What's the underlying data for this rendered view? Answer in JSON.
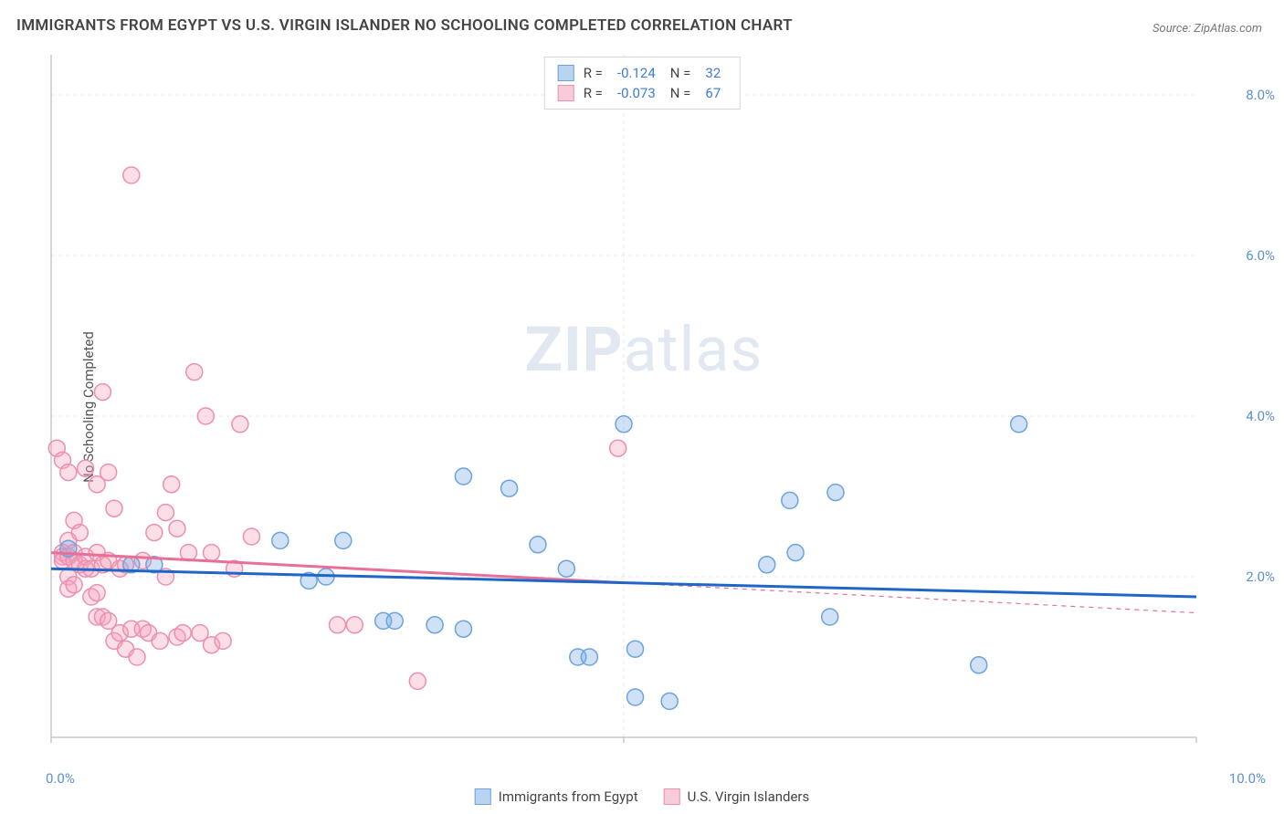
{
  "title": "IMMIGRANTS FROM EGYPT VS U.S. VIRGIN ISLANDER NO SCHOOLING COMPLETED CORRELATION CHART",
  "source": "Source: ZipAtlas.com",
  "y_axis_label": "No Schooling Completed",
  "watermark": {
    "bold": "ZIP",
    "light": "atlas"
  },
  "chart": {
    "type": "scatter-with-trend",
    "xlim": [
      0,
      10
    ],
    "ylim": [
      0,
      8.5
    ],
    "x_ticks": [
      0,
      5,
      10
    ],
    "x_tick_labels": [
      "0.0%",
      "5.0%",
      "10.0%"
    ],
    "y_ticks": [
      2,
      4,
      6,
      8
    ],
    "y_tick_labels": [
      "2.0%",
      "4.0%",
      "6.0%",
      "8.0%"
    ],
    "grid_color": "#e7e7e7",
    "grid_dash": "4 4",
    "axis_color": "#c9c9c9",
    "background_color": "#ffffff",
    "marker_radius": 9,
    "marker_stroke_width": 1.5,
    "trend_line_width": 3
  },
  "series": {
    "blue": {
      "label": "Immigrants from Egypt",
      "fill": "rgba(120,170,230,0.35)",
      "stroke": "#6aa3e0",
      "swatch_fill": "#b8d4f0",
      "swatch_border": "#6aa3e0",
      "R_label": "R =",
      "R_value": "-0.124",
      "N_label": "N =",
      "N_value": "32",
      "trend": {
        "x1": 0,
        "y1": 2.1,
        "x2": 10,
        "y2": 1.75,
        "color": "#1f66c7",
        "dash_after_x": null
      },
      "points": [
        [
          0.15,
          2.35
        ],
        [
          0.7,
          2.15
        ],
        [
          0.9,
          2.15
        ],
        [
          2.0,
          2.45
        ],
        [
          2.4,
          2.0
        ],
        [
          2.55,
          2.45
        ],
        [
          2.9,
          1.45
        ],
        [
          3.0,
          1.45
        ],
        [
          3.35,
          1.4
        ],
        [
          3.6,
          1.35
        ],
        [
          3.6,
          3.25
        ],
        [
          4.0,
          3.1
        ],
        [
          4.25,
          2.4
        ],
        [
          4.5,
          2.1
        ],
        [
          4.6,
          1.0
        ],
        [
          4.7,
          1.0
        ],
        [
          5.0,
          3.9
        ],
        [
          5.1,
          0.5
        ],
        [
          5.1,
          1.1
        ],
        [
          5.4,
          0.45
        ],
        [
          6.25,
          2.15
        ],
        [
          6.45,
          2.95
        ],
        [
          6.5,
          2.3
        ],
        [
          6.8,
          1.5
        ],
        [
          6.85,
          3.05
        ],
        [
          8.1,
          0.9
        ],
        [
          8.45,
          3.9
        ],
        [
          2.25,
          1.95
        ]
      ]
    },
    "pink": {
      "label": "U.S. Virgin Islanders",
      "fill": "rgba(245,160,185,0.35)",
      "stroke": "#ec8fb0",
      "swatch_fill": "#f7cbd9",
      "swatch_border": "#ec8fb0",
      "R_label": "R =",
      "R_value": "-0.073",
      "N_label": "N =",
      "N_value": "67",
      "trend": {
        "x1": 0,
        "y1": 2.3,
        "x2": 10,
        "y2": 1.55,
        "color": "#e86f97",
        "dash_after_x": 5.0
      },
      "points": [
        [
          0.05,
          3.6
        ],
        [
          0.1,
          3.45
        ],
        [
          0.1,
          2.3
        ],
        [
          0.1,
          2.25
        ],
        [
          0.1,
          2.2
        ],
        [
          0.15,
          3.3
        ],
        [
          0.15,
          2.45
        ],
        [
          0.15,
          2.25
        ],
        [
          0.15,
          2.0
        ],
        [
          0.15,
          1.85
        ],
        [
          0.2,
          2.7
        ],
        [
          0.2,
          2.3
        ],
        [
          0.2,
          2.2
        ],
        [
          0.2,
          1.9
        ],
        [
          0.25,
          2.55
        ],
        [
          0.25,
          2.15
        ],
        [
          0.3,
          3.35
        ],
        [
          0.3,
          2.25
        ],
        [
          0.3,
          2.1
        ],
        [
          0.35,
          2.1
        ],
        [
          0.35,
          1.75
        ],
        [
          0.4,
          3.15
        ],
        [
          0.4,
          2.3
        ],
        [
          0.4,
          1.8
        ],
        [
          0.4,
          1.5
        ],
        [
          0.45,
          4.3
        ],
        [
          0.45,
          2.15
        ],
        [
          0.45,
          1.5
        ],
        [
          0.5,
          3.3
        ],
        [
          0.5,
          2.2
        ],
        [
          0.5,
          1.45
        ],
        [
          0.55,
          2.85
        ],
        [
          0.55,
          1.2
        ],
        [
          0.6,
          2.1
        ],
        [
          0.6,
          1.3
        ],
        [
          0.65,
          2.15
        ],
        [
          0.65,
          1.1
        ],
        [
          0.7,
          7.0
        ],
        [
          0.7,
          1.35
        ],
        [
          0.75,
          1.0
        ],
        [
          0.8,
          2.2
        ],
        [
          0.8,
          1.35
        ],
        [
          0.85,
          1.3
        ],
        [
          0.9,
          2.55
        ],
        [
          0.95,
          1.2
        ],
        [
          1.0,
          2.8
        ],
        [
          1.0,
          2.0
        ],
        [
          1.05,
          3.15
        ],
        [
          1.1,
          2.6
        ],
        [
          1.1,
          1.25
        ],
        [
          1.15,
          1.3
        ],
        [
          1.2,
          2.3
        ],
        [
          1.25,
          4.55
        ],
        [
          1.3,
          1.3
        ],
        [
          1.35,
          4.0
        ],
        [
          1.4,
          2.3
        ],
        [
          1.4,
          1.15
        ],
        [
          1.5,
          1.2
        ],
        [
          1.6,
          2.1
        ],
        [
          1.65,
          3.9
        ],
        [
          1.75,
          2.5
        ],
        [
          2.5,
          1.4
        ],
        [
          2.65,
          1.4
        ],
        [
          3.2,
          0.7
        ],
        [
          4.95,
          3.6
        ]
      ]
    }
  }
}
